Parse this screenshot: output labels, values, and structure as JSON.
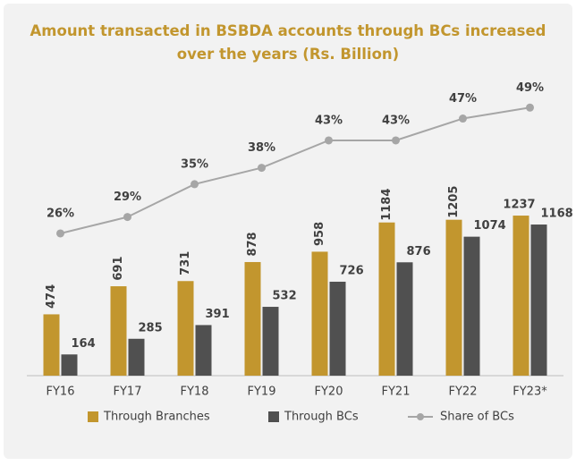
{
  "chart_data": {
    "type": "bar",
    "title": "Amount transacted in BSBDA accounts through BCs increased over the years (Rs. Billion)",
    "categories": [
      "FY16",
      "FY17",
      "FY18",
      "FY19",
      "FY20",
      "FY21",
      "FY22",
      "FY23*"
    ],
    "series": [
      {
        "name": "Through Branches",
        "color": "#c2962e",
        "values": [
          474,
          691,
          731,
          878,
          958,
          1184,
          1205,
          1237
        ]
      },
      {
        "name": "Through BCs",
        "color": "#505050",
        "values": [
          164,
          285,
          391,
          532,
          726,
          876,
          1074,
          1168
        ]
      },
      {
        "name": "Share of BCs",
        "color": "#a6a6a6",
        "type": "line",
        "axis": "y2",
        "values": [
          26,
          29,
          35,
          38,
          43,
          43,
          47,
          49
        ],
        "value_labels": [
          "26%",
          "29%",
          "35%",
          "38%",
          "43%",
          "43%",
          "47%",
          "49%"
        ]
      }
    ],
    "ylim": [
      0,
      1500
    ],
    "y2lim": [
      0,
      60
    ],
    "legend": "bottom"
  }
}
